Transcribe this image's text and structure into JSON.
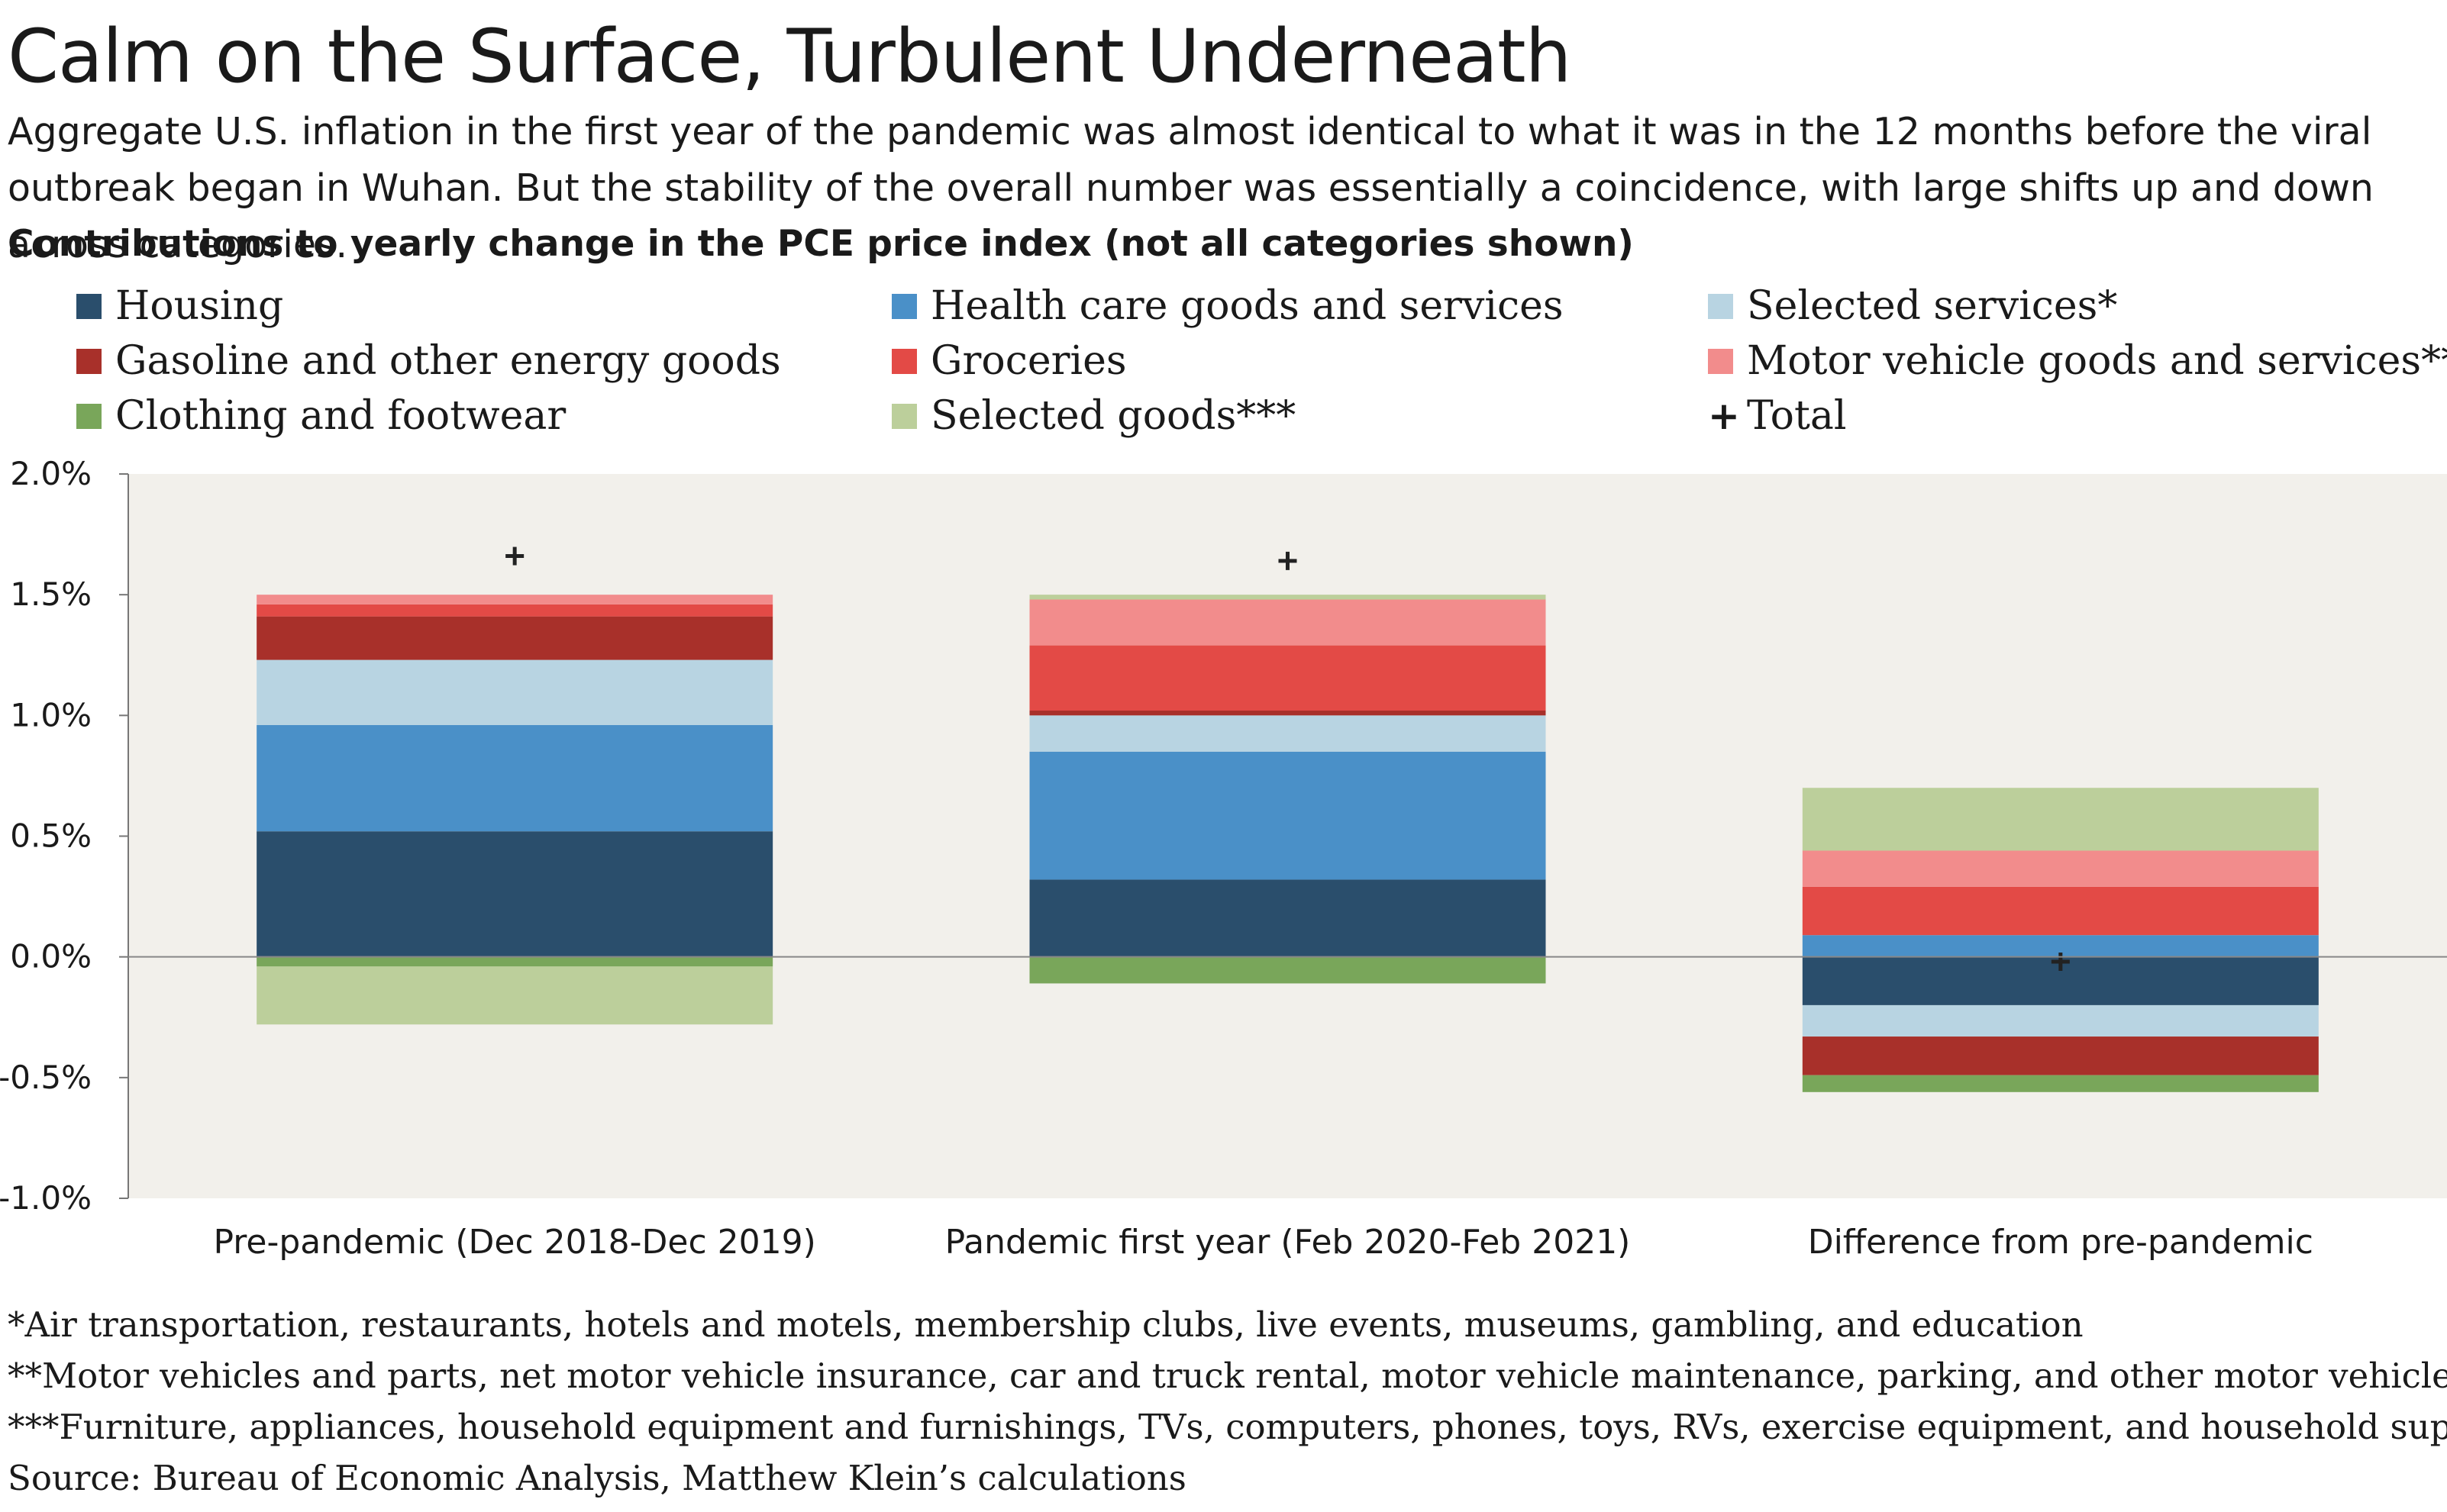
{
  "title": "Calm on the Surface, Turbulent Underneath",
  "subtitle": "Aggregate U.S. inflation in the first year of the pandemic was almost identical to what it was in the 12 months before the viral outbreak began in Wuhan. But the stability of the overall number was essentially a coincidence, with large shifts up and down across categories.",
  "chart_heading": "Contributions to yearly change in the PCE price index (not all categories shown)",
  "legend": [
    {
      "label": "Housing",
      "color": "#2a4e6c",
      "kind": "swatch"
    },
    {
      "label": "Health care goods and services",
      "color": "#4a90c8",
      "kind": "swatch"
    },
    {
      "label": "Selected services*",
      "color": "#b8d4e2",
      "kind": "swatch"
    },
    {
      "label": "Gasoline and other energy goods",
      "color": "#a8302a",
      "kind": "swatch"
    },
    {
      "label": "Groceries",
      "color": "#e34a46",
      "kind": "swatch"
    },
    {
      "label": "Motor vehicle goods and services**",
      "color": "#f28c8c",
      "kind": "swatch"
    },
    {
      "label": "Clothing and footwear",
      "color": "#79a65a",
      "kind": "swatch"
    },
    {
      "label": "Selected goods***",
      "color": "#bccf9b",
      "kind": "swatch"
    },
    {
      "label": "Total",
      "color": "#222222",
      "kind": "plus"
    }
  ],
  "chart_data": {
    "type": "bar",
    "stacked": true,
    "categories": [
      "Pre-pandemic (Dec 2018-Dec 2019)",
      "Pandemic first year (Feb 2020-Feb 2021)",
      "Difference from pre-pandemic"
    ],
    "ylim": [
      -1.0,
      2.0
    ],
    "yticks": [
      2.0,
      1.5,
      1.0,
      0.5,
      0.0,
      -0.5,
      -1.0
    ],
    "ytick_labels": [
      "2.0%",
      "1.5%",
      "1.0%",
      "0.5%",
      "0.0%",
      "-0.5%",
      "-1.0%"
    ],
    "series": [
      {
        "name": "Housing",
        "color": "#2a4e6c",
        "values": [
          0.52,
          0.32,
          -0.2
        ]
      },
      {
        "name": "Health care goods and services",
        "color": "#4a90c8",
        "values": [
          0.44,
          0.53,
          0.09
        ]
      },
      {
        "name": "Selected services*",
        "color": "#b8d4e2",
        "values": [
          0.27,
          0.15,
          -0.13
        ]
      },
      {
        "name": "Gasoline and other energy goods",
        "color": "#a8302a",
        "values": [
          0.18,
          0.02,
          -0.16
        ]
      },
      {
        "name": "Groceries",
        "color": "#e34a46",
        "values": [
          0.05,
          0.27,
          0.2
        ]
      },
      {
        "name": "Motor vehicle goods and services**",
        "color": "#f28c8c",
        "values": [
          0.04,
          0.19,
          0.15
        ]
      },
      {
        "name": "Clothing and footwear",
        "color": "#79a65a",
        "values": [
          -0.04,
          -0.11,
          -0.07
        ]
      },
      {
        "name": "Selected goods***",
        "color": "#bccf9b",
        "values": [
          -0.24,
          0.02,
          0.26
        ]
      }
    ],
    "total": {
      "name": "Total",
      "values": [
        1.66,
        1.64,
        -0.02
      ]
    },
    "plot_background": "#f2f0eb",
    "grid": false
  },
  "footnotes": [
    "*Air transportation, restaurants, hotels and motels, membership clubs, live events, museums, gambling, and education",
    "**Motor vehicles and parts, net motor vehicle insurance, car and truck rental, motor vehicle maintenance, parking, and other motor vehicle fees",
    "***Furniture, appliances, household equipment and furnishings, TVs, computers, phones, toys, RVs, exercise equipment, and household supplies",
    "Source: Bureau of Economic Analysis, Matthew Klein’s calculations"
  ]
}
